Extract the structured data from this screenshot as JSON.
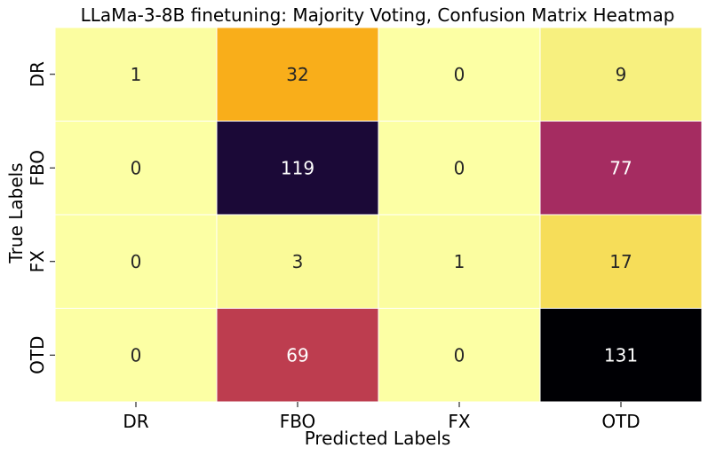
{
  "chart_data": {
    "type": "heatmap",
    "title": "LLaMa-3-8B finetuning: Majority Voting, Confusion Matrix Heatmap",
    "xlabel": "Predicted Labels",
    "ylabel": "True Labels",
    "x_categories": [
      "DR",
      "FBO",
      "FX",
      "OTD"
    ],
    "y_categories": [
      "DR",
      "FBO",
      "FX",
      "OTD"
    ],
    "values": [
      [
        1,
        32,
        0,
        9
      ],
      [
        0,
        119,
        0,
        77
      ],
      [
        0,
        3,
        1,
        17
      ],
      [
        0,
        69,
        0,
        131
      ]
    ],
    "vmin": 0,
    "vmax": 131,
    "colormap": "inferno_r",
    "colorbar": false,
    "annotations": true
  }
}
